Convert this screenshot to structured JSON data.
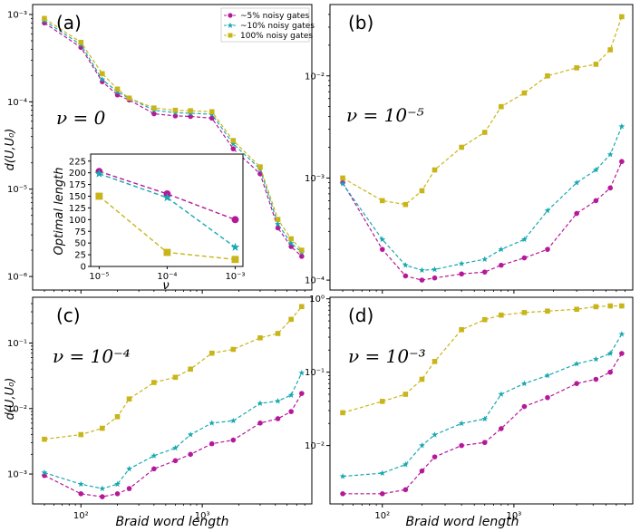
{
  "colors": {
    "magenta": "#b5199a",
    "cyan": "#17a8b0",
    "olive": "#c8b519"
  },
  "legend": [
    "~5%   noisy gates",
    "~10% noisy gates",
    "100% noisy gates"
  ],
  "ylabel": "d(U,U₀)",
  "xlabel": "Braid word length",
  "chart_data": [
    {
      "panel": "(a)",
      "type": "line",
      "annotation": "ν = 0",
      "xscale": "log",
      "yscale": "log",
      "ylim": [
        7e-07,
        0.0013
      ],
      "yticks": [
        "10⁻⁶",
        "10⁻⁵",
        "10⁻⁴",
        "10⁻³"
      ],
      "x": [
        50,
        100,
        150,
        200,
        250,
        400,
        600,
        800,
        1200,
        1800,
        3000,
        4200,
        5400,
        6600
      ],
      "series": [
        {
          "name": "~5% noisy gates",
          "values": [
            0.0008,
            0.00042,
            0.00017,
            0.00012,
            0.000105,
            7.3e-05,
            6.9e-05,
            6.8e-05,
            6.5e-05,
            2.9e-05,
            1.5e-05,
            3.6e-06,
            2.2e-06,
            1.7e-06
          ]
        },
        {
          "name": "~10% noisy gates",
          "values": [
            0.00085,
            0.00045,
            0.00018,
            0.00013,
            0.00011,
            8e-05,
            7.5e-05,
            7.4e-05,
            7.2e-05,
            3.3e-05,
            1.7e-05,
            4e-06,
            2.4e-06,
            1.9e-06
          ]
        },
        {
          "name": "100% noisy gates",
          "values": [
            0.0009,
            0.00048,
            0.00021,
            0.00014,
            0.00011,
            8.5e-05,
            8e-05,
            7.9e-05,
            7.7e-05,
            3.6e-05,
            1.8e-05,
            4.5e-06,
            2.7e-06,
            2e-06
          ]
        }
      ]
    },
    {
      "panel": "(b)",
      "type": "line",
      "annotation": "ν = 10⁻⁵",
      "xscale": "log",
      "yscale": "log",
      "ylim": [
        8e-05,
        0.05
      ],
      "yticks": [
        "10⁻⁴",
        "10⁻³",
        "10⁻²"
      ],
      "x": [
        50,
        100,
        150,
        200,
        250,
        400,
        600,
        800,
        1200,
        1800,
        3000,
        4200,
        5400,
        6600
      ],
      "series": [
        {
          "name": "~5% noisy gates",
          "values": [
            0.0009,
            0.0002,
            0.00011,
            0.0001,
            0.000105,
            0.000115,
            0.00012,
            0.00014,
            0.000165,
            0.0002,
            0.00045,
            0.0006,
            0.0008,
            0.00145
          ]
        },
        {
          "name": "~10% noisy gates",
          "values": [
            0.00088,
            0.00025,
            0.00014,
            0.000125,
            0.000127,
            0.000145,
            0.00016,
            0.0002,
            0.00025,
            0.00048,
            0.0009,
            0.0012,
            0.0017,
            0.0032
          ]
        },
        {
          "name": "100% noisy gates",
          "values": [
            0.001,
            0.0006,
            0.00055,
            0.00075,
            0.0012,
            0.002,
            0.0028,
            0.005,
            0.0068,
            0.01,
            0.012,
            0.013,
            0.018,
            0.038
          ]
        }
      ]
    },
    {
      "panel": "(c)",
      "type": "line",
      "annotation": "ν = 10⁻⁴",
      "xscale": "log",
      "yscale": "log",
      "ylim": [
        0.00035,
        0.5
      ],
      "yticks": [
        "10⁻³",
        "10⁻²",
        "10⁻¹"
      ],
      "xticks": [
        "10²",
        "10³"
      ],
      "x": [
        50,
        100,
        150,
        200,
        250,
        400,
        600,
        800,
        1200,
        1800,
        3000,
        4200,
        5400,
        6600
      ],
      "series": [
        {
          "name": "~5% noisy gates",
          "values": [
            0.00095,
            0.0005,
            0.00045,
            0.0005,
            0.0006,
            0.0012,
            0.0016,
            0.002,
            0.0029,
            0.0033,
            0.006,
            0.007,
            0.009,
            0.017
          ]
        },
        {
          "name": "~10% noisy gates",
          "values": [
            0.00105,
            0.0007,
            0.0006,
            0.0007,
            0.0012,
            0.0019,
            0.0025,
            0.004,
            0.006,
            0.0065,
            0.012,
            0.013,
            0.016,
            0.035
          ]
        },
        {
          "name": "100% noisy gates",
          "values": [
            0.0034,
            0.004,
            0.005,
            0.0075,
            0.014,
            0.025,
            0.03,
            0.04,
            0.07,
            0.08,
            0.12,
            0.14,
            0.23,
            0.36
          ]
        }
      ]
    },
    {
      "panel": "(d)",
      "type": "line",
      "annotation": "ν = 10⁻³",
      "xscale": "log",
      "yscale": "log",
      "ylim": [
        0.0016,
        1.05
      ],
      "yticks": [
        "10⁻²",
        "10⁻¹",
        "10⁰"
      ],
      "xticks": [
        "10²",
        "10³"
      ],
      "x": [
        50,
        100,
        150,
        200,
        250,
        400,
        600,
        800,
        1200,
        1800,
        3000,
        4200,
        5400,
        6600
      ],
      "series": [
        {
          "name": "~5% noisy gates",
          "values": [
            0.0022,
            0.0022,
            0.0025,
            0.0045,
            0.007,
            0.01,
            0.011,
            0.017,
            0.034,
            0.045,
            0.07,
            0.08,
            0.1,
            0.18
          ]
        },
        {
          "name": "~10% noisy gates",
          "values": [
            0.0038,
            0.0042,
            0.0055,
            0.01,
            0.014,
            0.02,
            0.023,
            0.05,
            0.07,
            0.09,
            0.13,
            0.15,
            0.18,
            0.33
          ]
        },
        {
          "name": "100% noisy gates",
          "values": [
            0.028,
            0.04,
            0.05,
            0.08,
            0.14,
            0.38,
            0.52,
            0.6,
            0.65,
            0.68,
            0.72,
            0.78,
            0.8,
            0.8
          ]
        }
      ]
    },
    {
      "panel": "inset",
      "type": "line",
      "xlabel": "ν",
      "ylabel": "Optimal length",
      "xscale": "log",
      "xticks": [
        "10⁻⁵",
        "10⁻⁴",
        "10⁻³"
      ],
      "ylim": [
        0,
        240
      ],
      "yticks": [
        "0",
        "25",
        "50",
        "75",
        "100",
        "125",
        "150",
        "175",
        "200",
        "225"
      ],
      "x": [
        1e-05,
        0.0001,
        0.001
      ],
      "series": [
        {
          "name": "~5% noisy gates",
          "values": [
            203,
            155,
            100
          ]
        },
        {
          "name": "~10% noisy gates",
          "values": [
            198,
            147,
            41
          ]
        },
        {
          "name": "100% noisy gates",
          "values": [
            150,
            30,
            15
          ]
        }
      ]
    }
  ]
}
